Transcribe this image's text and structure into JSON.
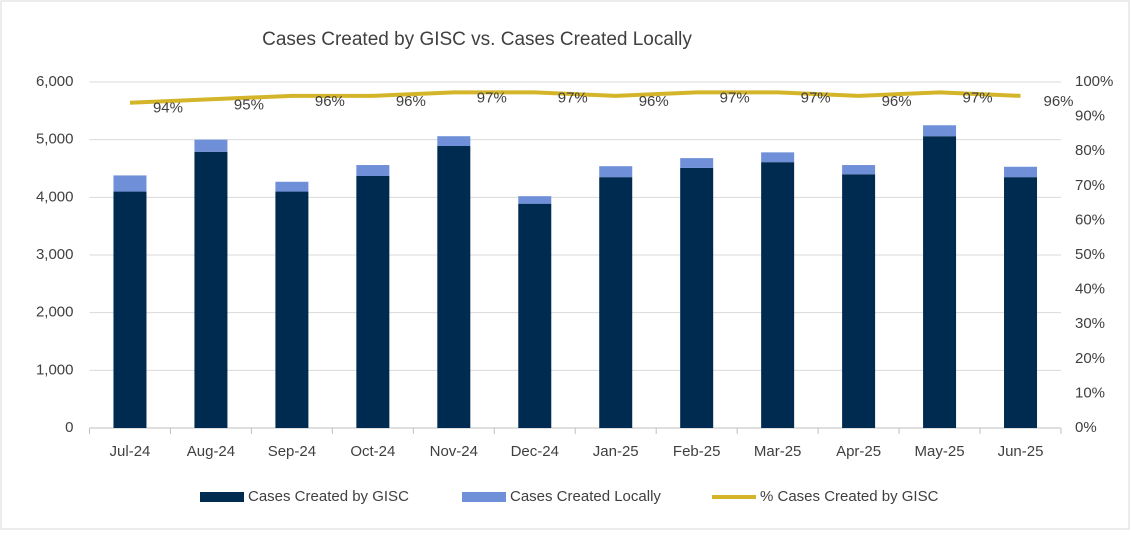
{
  "chart_data": {
    "type": "bar",
    "title": "Cases Created by GISC vs. Cases Created Locally",
    "categories": [
      "Jul-24",
      "Aug-24",
      "Sep-24",
      "Oct-24",
      "Nov-24",
      "Dec-24",
      "Jan-25",
      "Feb-25",
      "Mar-25",
      "Apr-25",
      "May-25",
      "Jun-25"
    ],
    "series": [
      {
        "name": "Cases Created by GISC",
        "type": "bar",
        "color": "#002b50",
        "values": [
          4100,
          4790,
          4100,
          4370,
          4890,
          3890,
          4350,
          4510,
          4610,
          4400,
          5060,
          4350
        ]
      },
      {
        "name": "Cases Created Locally",
        "type": "bar",
        "color": "#6f8fd8",
        "values": [
          280,
          210,
          170,
          190,
          170,
          130,
          190,
          170,
          170,
          160,
          190,
          180
        ]
      },
      {
        "name": "% Cases Created by GISC",
        "type": "line",
        "axis": "y2",
        "color": "#d4b52a",
        "values": [
          94,
          95,
          96,
          96,
          97,
          97,
          96,
          97,
          97,
          96,
          97,
          96
        ],
        "value_labels": [
          "94%",
          "95%",
          "96%",
          "96%",
          "97%",
          "97%",
          "96%",
          "97%",
          "97%",
          "96%",
          "97%",
          "96%"
        ]
      }
    ],
    "stacked": true,
    "ylim": [
      0,
      6000
    ],
    "yticks": [
      0,
      {
        "value": 1000,
        "label": "1,000"
      },
      {
        "value": 2000,
        "label": "2,000"
      },
      {
        "value": 3000,
        "label": "3,000"
      },
      {
        "value": 4000,
        "label": "4,000"
      },
      {
        "value": 5000,
        "label": "5,000"
      },
      {
        "value": 6000,
        "label": "6,000"
      }
    ],
    "y2lim": [
      0,
      100
    ],
    "y2ticks": [
      {
        "value": 0,
        "label": "0%"
      },
      {
        "value": 10,
        "label": "10%"
      },
      {
        "value": 20,
        "label": "20%"
      },
      {
        "value": 30,
        "label": "30%"
      },
      {
        "value": 40,
        "label": "40%"
      },
      {
        "value": 50,
        "label": "50%"
      },
      {
        "value": 60,
        "label": "60%"
      },
      {
        "value": 70,
        "label": "70%"
      },
      {
        "value": 80,
        "label": "80%"
      },
      {
        "value": 90,
        "label": "90%"
      },
      {
        "value": 100,
        "label": "100%"
      }
    ],
    "legend": "bottom"
  }
}
